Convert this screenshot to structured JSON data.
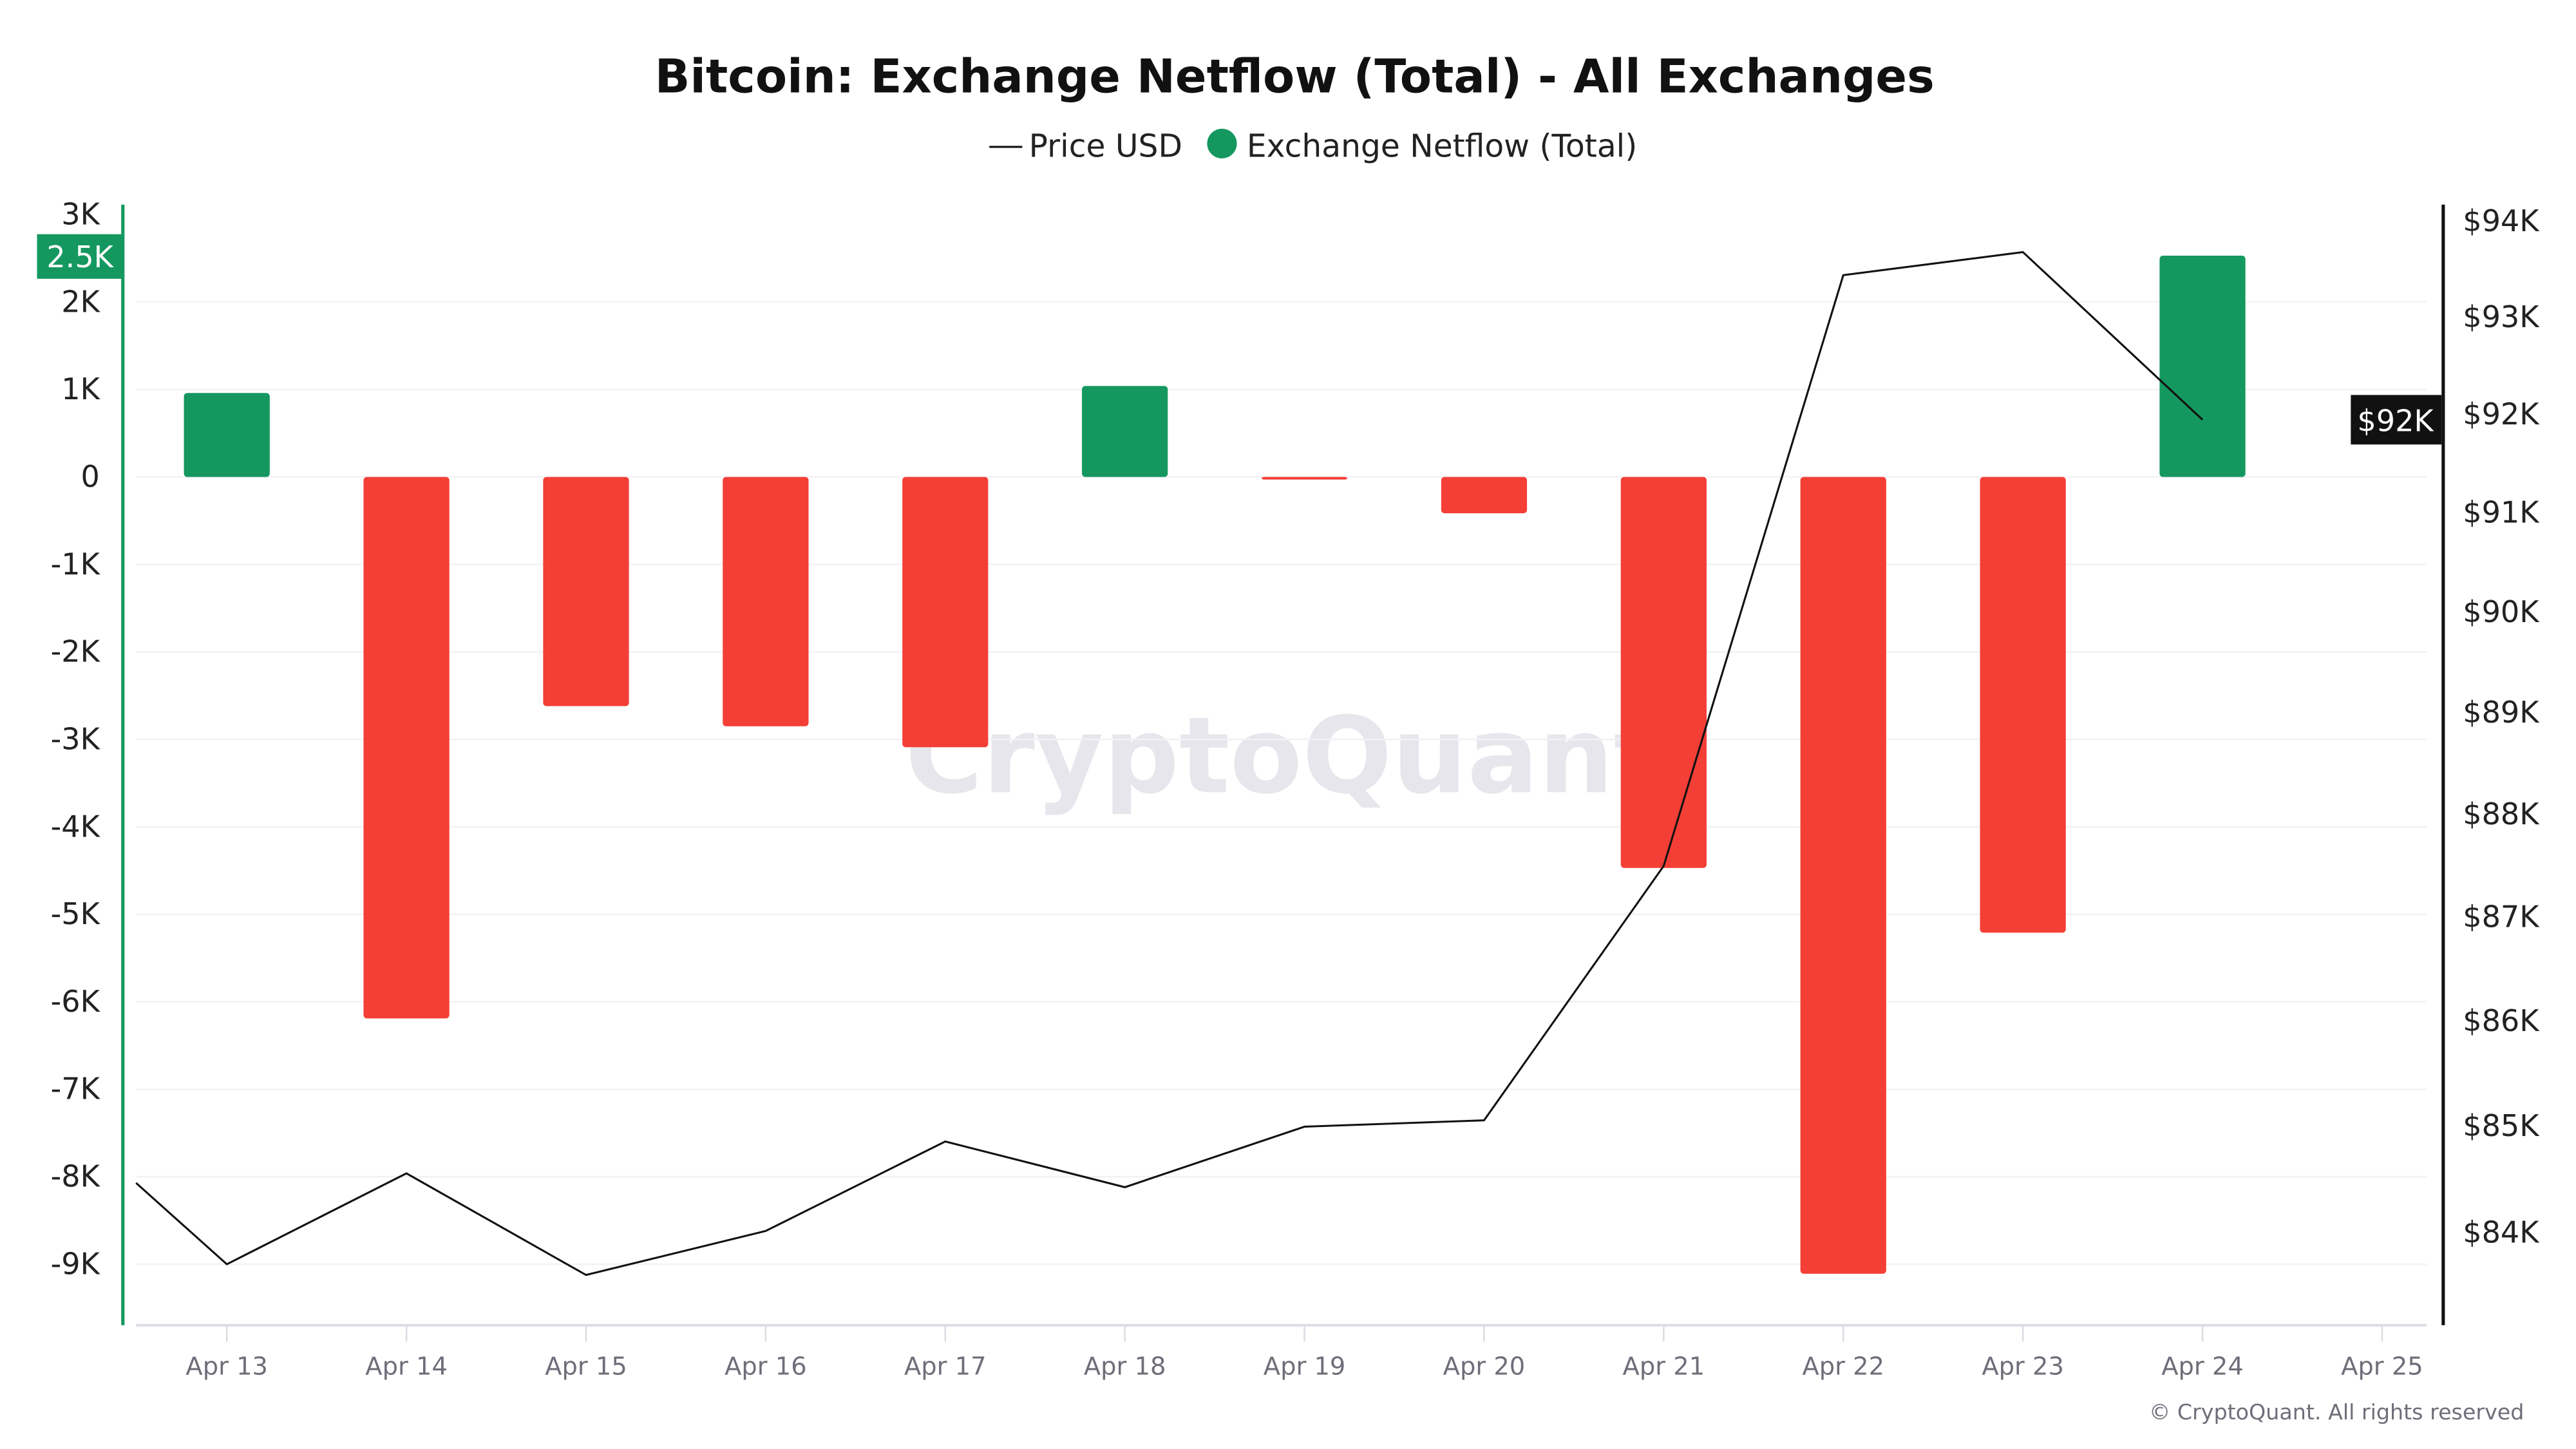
{
  "chart_data": {
    "type": "bar+line",
    "title": "Bitcoin: Exchange Netflow (Total) - All Exchanges",
    "legend": {
      "placement": "top-center",
      "entries": [
        "Price USD",
        "Exchange Netflow (Total)"
      ]
    },
    "categories": [
      "Apr 13",
      "Apr 14",
      "Apr 15",
      "Apr 16",
      "Apr 17",
      "Apr 18",
      "Apr 19",
      "Apr 20",
      "Apr 21",
      "Apr 22",
      "Apr 23",
      "Apr 24"
    ],
    "x_ticks": [
      "Apr 13",
      "Apr 14",
      "Apr 15",
      "Apr 16",
      "Apr 17",
      "Apr 18",
      "Apr 19",
      "Apr 20",
      "Apr 21",
      "Apr 22",
      "Apr 23",
      "Apr 24",
      "Apr 25"
    ],
    "series": [
      {
        "name": "Exchange Netflow (Total)",
        "type": "bar",
        "axis": "left",
        "values": [
          960,
          -6190,
          -2620,
          -2850,
          -3090,
          1040,
          -30,
          -415,
          -4470,
          -9110,
          -5210,
          2530
        ]
      },
      {
        "name": "Price USD",
        "type": "line",
        "axis": "right",
        "x": [
          "Apr 12",
          "Apr 13",
          "Apr 14",
          "Apr 15",
          "Apr 16",
          "Apr 17",
          "Apr 18",
          "Apr 19",
          "Apr 20",
          "Apr 21",
          "Apr 22",
          "Apr 23",
          "Apr 24"
        ],
        "values": [
          85200,
          83690,
          84540,
          83590,
          84000,
          84840,
          84410,
          84980,
          85040,
          87480,
          93420,
          93660,
          91930
        ]
      }
    ],
    "left_axis": {
      "ticks": [
        "3K",
        "2K",
        "1K",
        "0",
        "-1K",
        "-2K",
        "-3K",
        "-4K",
        "-5K",
        "-6K",
        "-7K",
        "-8K",
        "-9K"
      ],
      "tick_values": [
        3000,
        2000,
        1000,
        0,
        -1000,
        -2000,
        -3000,
        -4000,
        -5000,
        -6000,
        -7000,
        -8000,
        -9000
      ],
      "current_label": "2.5K"
    },
    "right_axis": {
      "scale": "log",
      "ticks": [
        "$94K",
        "$93K",
        "$92K",
        "$91K",
        "$90K",
        "$89K",
        "$88K",
        "$87K",
        "$86K",
        "$85K",
        "$84K"
      ],
      "tick_values": [
        94000,
        93000,
        92000,
        91000,
        90000,
        89000,
        88000,
        87000,
        86000,
        85000,
        84000
      ],
      "current_label": "$92K"
    },
    "grid": true,
    "colors": {
      "positive": "#14985f",
      "negative": "#f43f36",
      "price": "#111111",
      "left_axis": "#14985f",
      "right_axis": "#111111"
    }
  },
  "watermark": "CryptoQuant",
  "footer": "© CryptoQuant. All rights reserved"
}
